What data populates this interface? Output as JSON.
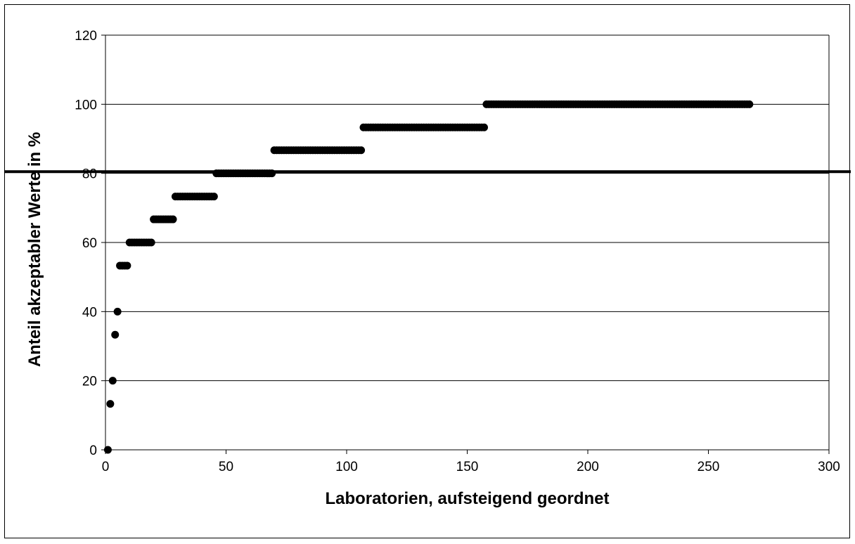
{
  "chart_data": {
    "type": "scatter",
    "title": "",
    "xlabel": "Laboratorien, aufsteigend geordnet",
    "ylabel": "Anteil akzeptabler Werte in %",
    "xlim": [
      0,
      300
    ],
    "ylim": [
      0,
      120
    ],
    "x_ticks": [
      "0",
      "50",
      "100",
      "150",
      "200",
      "250",
      "300"
    ],
    "y_ticks": [
      "0",
      "20",
      "40",
      "60",
      "80",
      "100",
      "120"
    ],
    "grid": "horizontal",
    "legend": "none",
    "reference_line": {
      "y": 80.5
    },
    "series": [
      {
        "points": [
          {
            "x": 1,
            "y": 0
          },
          {
            "x": 2,
            "y": 13.3
          },
          {
            "x": 3,
            "y": 20
          },
          {
            "x": 4,
            "y": 33.3
          },
          {
            "x": 5,
            "y": 40
          }
        ],
        "segments": [
          {
            "x_start": 6,
            "x_end": 9,
            "y": 53.3
          },
          {
            "x_start": 10,
            "x_end": 19,
            "y": 60
          },
          {
            "x_start": 20,
            "x_end": 28,
            "y": 66.7
          },
          {
            "x_start": 29,
            "x_end": 45,
            "y": 73.3
          },
          {
            "x_start": 46,
            "x_end": 69,
            "y": 80
          },
          {
            "x_start": 70,
            "x_end": 106,
            "y": 86.7
          },
          {
            "x_start": 107,
            "x_end": 157,
            "y": 93.3
          },
          {
            "x_start": 158,
            "x_end": 267,
            "y": 100
          }
        ]
      }
    ]
  },
  "colors": {
    "marker": "#000000",
    "axis": "#000000",
    "grid": "#000000",
    "background": "#ffffff"
  }
}
